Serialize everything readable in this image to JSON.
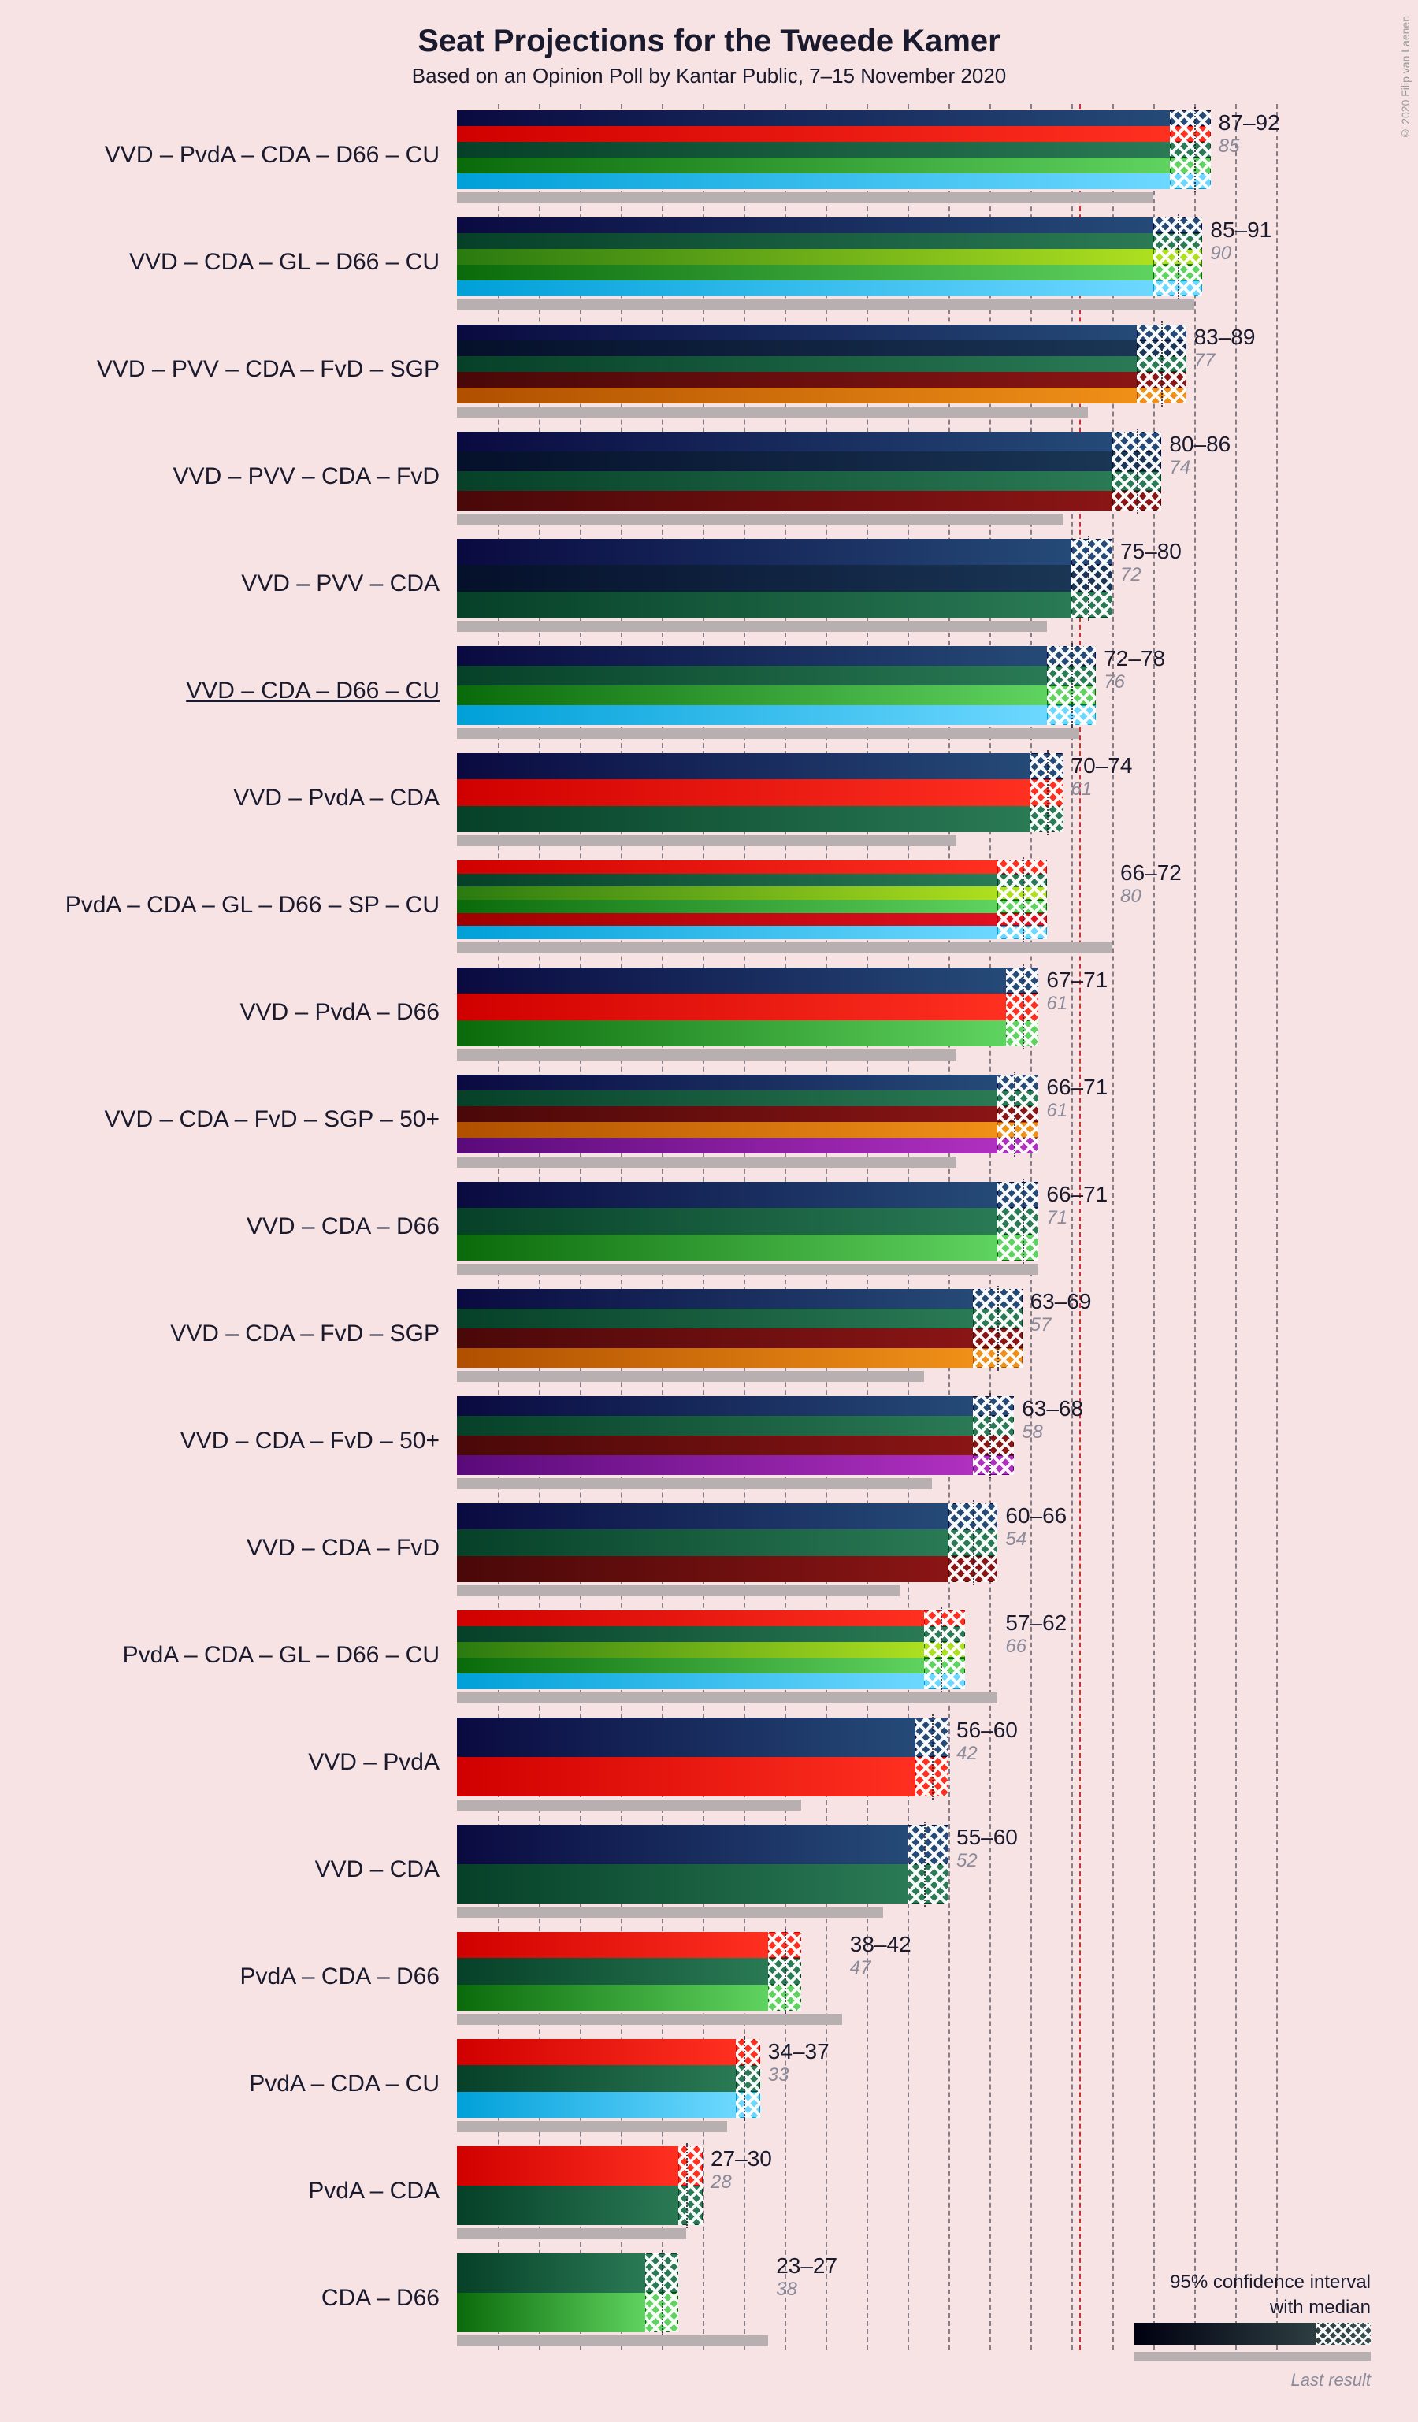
{
  "title": "Seat Projections for the Tweede Kamer",
  "subtitle": "Based on an Opinion Poll by Kantar Public, 7–15 November 2020",
  "copyright": "© 2020 Filip van Laenen",
  "axis": {
    "min": 0,
    "max": 100,
    "grid_step": 5,
    "majority": 76
  },
  "party_colors": {
    "VVD": [
      "#0a0a40",
      "#254a78"
    ],
    "PvdA": [
      "#d00000",
      "#ff3020"
    ],
    "CDA": [
      "#064028",
      "#2a7a55"
    ],
    "D66": [
      "#0a6a0a",
      "#5fd35f"
    ],
    "CU": [
      "#00a0d8",
      "#6dd8ff"
    ],
    "GL": [
      "#2a7a10",
      "#aee020"
    ],
    "PVV": [
      "#05102a",
      "#1a3555"
    ],
    "FvD": [
      "#4a0808",
      "#8a1515"
    ],
    "SGP": [
      "#b05000",
      "#f09018"
    ],
    "SP": [
      "#a00000",
      "#e01020"
    ],
    "50+": [
      "#5a0a7a",
      "#b030c0"
    ]
  },
  "coalitions": [
    {
      "label": "VVD – PvdA – CDA – D66 – CU",
      "parties": [
        "VVD",
        "PvdA",
        "CDA",
        "D66",
        "CU"
      ],
      "low": 87,
      "high": 92,
      "median": 90,
      "last": 85
    },
    {
      "label": "VVD – CDA – GL – D66 – CU",
      "parties": [
        "VVD",
        "CDA",
        "GL",
        "D66",
        "CU"
      ],
      "low": 85,
      "high": 91,
      "median": 88,
      "last": 90
    },
    {
      "label": "VVD – PVV – CDA – FvD – SGP",
      "parties": [
        "VVD",
        "PVV",
        "CDA",
        "FvD",
        "SGP"
      ],
      "low": 83,
      "high": 89,
      "median": 86,
      "last": 77
    },
    {
      "label": "VVD – PVV – CDA – FvD",
      "parties": [
        "VVD",
        "PVV",
        "CDA",
        "FvD"
      ],
      "low": 80,
      "high": 86,
      "median": 83,
      "last": 74
    },
    {
      "label": "VVD – PVV – CDA",
      "parties": [
        "VVD",
        "PVV",
        "CDA"
      ],
      "low": 75,
      "high": 80,
      "median": 77,
      "last": 72
    },
    {
      "label": "VVD – CDA – D66 – CU",
      "parties": [
        "VVD",
        "CDA",
        "D66",
        "CU"
      ],
      "low": 72,
      "high": 78,
      "median": 75,
      "last": 76,
      "underline": true
    },
    {
      "label": "VVD – PvdA – CDA",
      "parties": [
        "VVD",
        "PvdA",
        "CDA"
      ],
      "low": 70,
      "high": 74,
      "median": 72,
      "last": 61
    },
    {
      "label": "PvdA – CDA – GL – D66 – SP – CU",
      "parties": [
        "PvdA",
        "CDA",
        "GL",
        "D66",
        "SP",
        "CU"
      ],
      "low": 66,
      "high": 72,
      "median": 69,
      "last": 80
    },
    {
      "label": "VVD – PvdA – D66",
      "parties": [
        "VVD",
        "PvdA",
        "D66"
      ],
      "low": 67,
      "high": 71,
      "median": 69,
      "last": 61
    },
    {
      "label": "VVD – CDA – FvD – SGP – 50+",
      "parties": [
        "VVD",
        "CDA",
        "FvD",
        "SGP",
        "50+"
      ],
      "low": 66,
      "high": 71,
      "median": 68,
      "last": 61
    },
    {
      "label": "VVD – CDA – D66",
      "parties": [
        "VVD",
        "CDA",
        "D66"
      ],
      "low": 66,
      "high": 71,
      "median": 69,
      "last": 71
    },
    {
      "label": "VVD – CDA – FvD – SGP",
      "parties": [
        "VVD",
        "CDA",
        "FvD",
        "SGP"
      ],
      "low": 63,
      "high": 69,
      "median": 66,
      "last": 57
    },
    {
      "label": "VVD – CDA – FvD – 50+",
      "parties": [
        "VVD",
        "CDA",
        "FvD",
        "50+"
      ],
      "low": 63,
      "high": 68,
      "median": 65,
      "last": 58
    },
    {
      "label": "VVD – CDA – FvD",
      "parties": [
        "VVD",
        "CDA",
        "FvD"
      ],
      "low": 60,
      "high": 66,
      "median": 63,
      "last": 54
    },
    {
      "label": "PvdA – CDA – GL – D66 – CU",
      "parties": [
        "PvdA",
        "CDA",
        "GL",
        "D66",
        "CU"
      ],
      "low": 57,
      "high": 62,
      "median": 59,
      "last": 66
    },
    {
      "label": "VVD – PvdA",
      "parties": [
        "VVD",
        "PvdA"
      ],
      "low": 56,
      "high": 60,
      "median": 58,
      "last": 42
    },
    {
      "label": "VVD – CDA",
      "parties": [
        "VVD",
        "CDA"
      ],
      "low": 55,
      "high": 60,
      "median": 57,
      "last": 52
    },
    {
      "label": "PvdA – CDA – D66",
      "parties": [
        "PvdA",
        "CDA",
        "D66"
      ],
      "low": 38,
      "high": 42,
      "median": 40,
      "last": 47
    },
    {
      "label": "PvdA – CDA – CU",
      "parties": [
        "PvdA",
        "CDA",
        "CU"
      ],
      "low": 34,
      "high": 37,
      "median": 35,
      "last": 33
    },
    {
      "label": "PvdA – CDA",
      "parties": [
        "PvdA",
        "CDA"
      ],
      "low": 27,
      "high": 30,
      "median": 28,
      "last": 28
    },
    {
      "label": "CDA – D66",
      "parties": [
        "CDA",
        "D66"
      ],
      "low": 23,
      "high": 27,
      "median": 25,
      "last": 38
    }
  ],
  "legend": {
    "line1": "95% confidence interval",
    "line2": "with median",
    "last": "Last result"
  },
  "style": {
    "background": "#f7e3e3",
    "text_color": "#1a1a2e",
    "grid_color": "#1a1a2e",
    "majority_color": "#c02020",
    "last_result_color": "#b8b0b0",
    "last_label_color": "#8a8a9a",
    "title_fontsize": 40,
    "subtitle_fontsize": 26,
    "label_fontsize": 30,
    "value_fontsize": 28
  }
}
